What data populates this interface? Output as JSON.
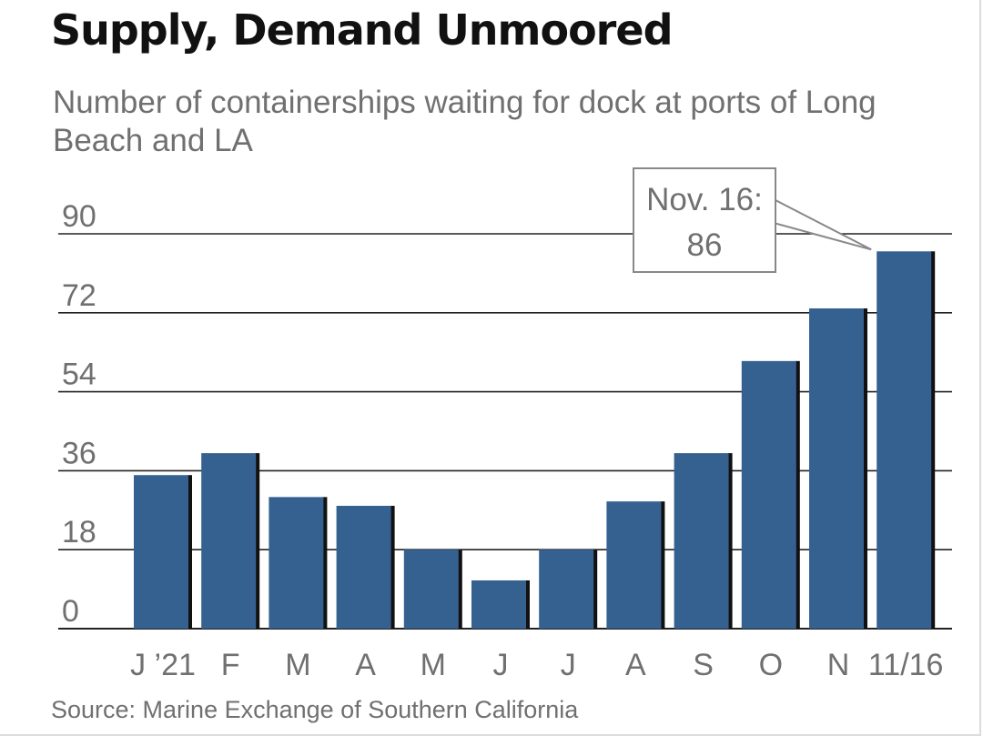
{
  "title": "Supply, Demand Unmoored",
  "subtitle": "Number of containerships waiting for dock at ports of Long Beach and LA",
  "source": "Source: Marine Exchange of Southern California",
  "colors": {
    "bar": "#356191",
    "bar_shadow": "#111111",
    "gridline": "#222222",
    "text": "#707070",
    "title": "#111111"
  },
  "chart_data": {
    "type": "bar",
    "categories": [
      "J ’21",
      "F",
      "M",
      "A",
      "M",
      "J",
      "J",
      "A",
      "S",
      "O",
      "N",
      "11/16"
    ],
    "values": [
      35,
      40,
      30,
      28,
      18,
      11,
      18,
      29,
      40,
      61,
      73,
      86
    ],
    "ylim": [
      0,
      90
    ],
    "yticks": [
      0,
      18,
      36,
      54,
      72,
      90
    ],
    "grid": true,
    "annotation": {
      "lines": [
        "Nov. 16:",
        "86"
      ],
      "category": "11/16",
      "value": 86
    }
  }
}
